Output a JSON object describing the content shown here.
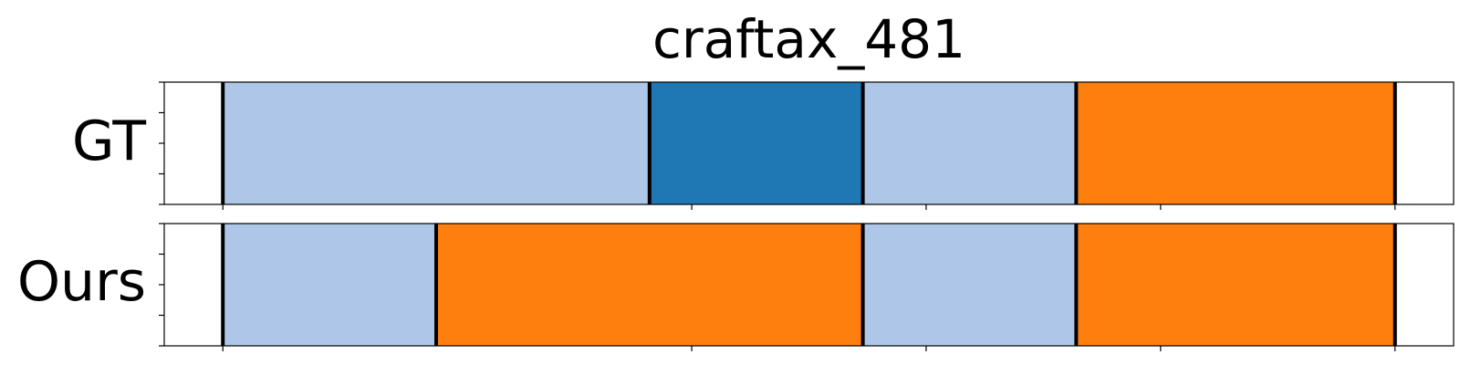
{
  "chart_data": {
    "type": "segmentation_timeline",
    "title": "craftax_481",
    "xlim": [
      0,
      550
    ],
    "x_ticks": [
      25,
      225,
      325,
      425,
      525
    ],
    "x_tick_labels": [
      "",
      "",
      "",
      "",
      ""
    ],
    "colors": {
      "light_blue": "#aec7e8",
      "dark_blue": "#1f77b4",
      "orange": "#ff7f0e",
      "boundary": "#000000"
    },
    "rows": [
      {
        "label": "GT",
        "segments": [
          {
            "start": 25,
            "end": 207,
            "color": "light_blue"
          },
          {
            "start": 207,
            "end": 298,
            "color": "dark_blue"
          },
          {
            "start": 298,
            "end": 389,
            "color": "light_blue"
          },
          {
            "start": 389,
            "end": 525,
            "color": "orange"
          }
        ]
      },
      {
        "label": "Ours",
        "segments": [
          {
            "start": 25,
            "end": 116,
            "color": "light_blue"
          },
          {
            "start": 116,
            "end": 298,
            "color": "orange"
          },
          {
            "start": 298,
            "end": 389,
            "color": "light_blue"
          },
          {
            "start": 389,
            "end": 525,
            "color": "orange"
          }
        ]
      }
    ]
  }
}
